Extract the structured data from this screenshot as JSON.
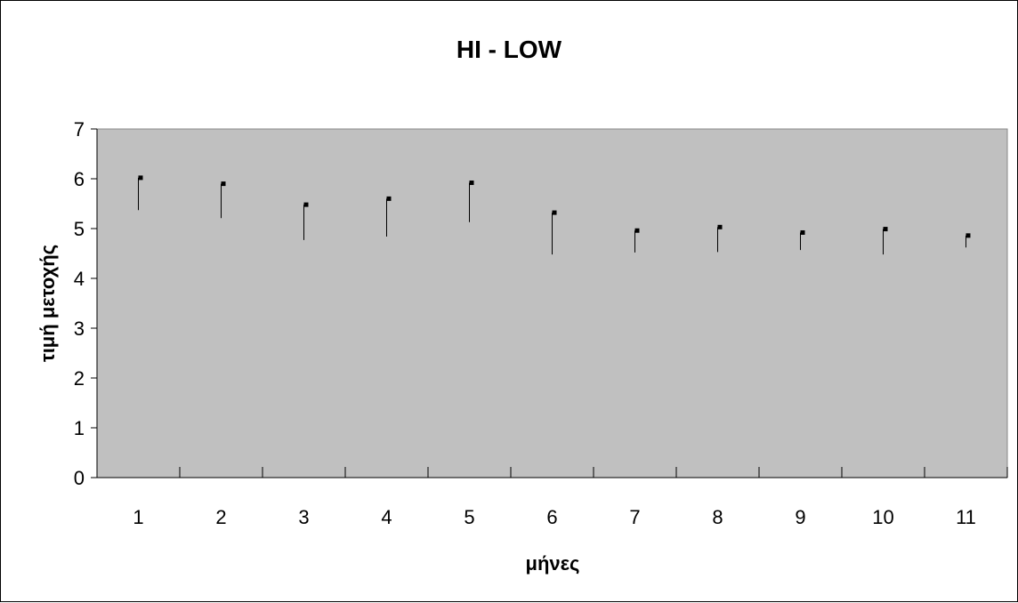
{
  "chart_data": {
    "type": "hi-low",
    "title": "HI - LOW",
    "xlabel": "μήνες",
    "ylabel": "τιμή μετοχής",
    "categories": [
      "1",
      "2",
      "3",
      "4",
      "5",
      "6",
      "7",
      "8",
      "9",
      "10",
      "11"
    ],
    "high": [
      6.02,
      5.9,
      5.48,
      5.6,
      5.92,
      5.32,
      4.96,
      5.03,
      4.92,
      4.99,
      4.86
    ],
    "low": [
      5.37,
      5.21,
      4.77,
      4.84,
      5.13,
      4.48,
      4.52,
      4.53,
      4.57,
      4.48,
      4.62
    ],
    "close": [
      6.02,
      5.9,
      5.48,
      5.6,
      5.92,
      5.32,
      4.96,
      5.03,
      4.92,
      4.99,
      4.86
    ],
    "ylim": [
      0,
      7
    ],
    "yticks": [
      "0",
      "1",
      "2",
      "3",
      "4",
      "5",
      "6",
      "7"
    ],
    "grid": false,
    "legend": "none",
    "colors": {
      "plot_background": "#c0c0c0",
      "marks": "#000000"
    }
  }
}
